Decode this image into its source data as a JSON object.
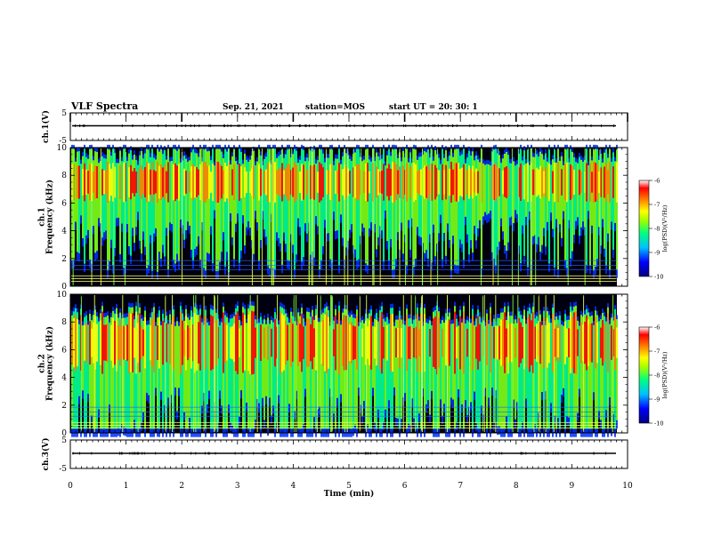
{
  "header": {
    "title": "VLF Spectra",
    "date": "Sep. 21, 2021",
    "station": "station=MOS",
    "start": "start UT =  20: 30: 1"
  },
  "colors": {
    "spectrogram_scale": [
      "#000080",
      "#0000ff",
      "#00c0ff",
      "#00ff80",
      "#80ff00",
      "#ffff00",
      "#ff8000",
      "#ff0000",
      "#ffffff"
    ]
  },
  "chart_data": [
    {
      "type": "line",
      "name": "ch1-waveform",
      "ylabel": "ch.1(V)",
      "yticks": [
        "5",
        "-5"
      ],
      "ylim": [
        -5,
        5
      ],
      "xlim": [
        0,
        10
      ],
      "level": 0
    },
    {
      "type": "heatmap",
      "name": "ch1-spectrogram",
      "ylabel": "ch.1\nFrequency (kHz)",
      "ylabel_lines": [
        "ch.1",
        "Frequency (kHz)"
      ],
      "yticks": [
        "0",
        "2",
        "4",
        "6",
        "8",
        "10"
      ],
      "ylim": [
        0,
        10
      ],
      "xlim": [
        0,
        9.8
      ],
      "band_center_khz": 7.5,
      "colorbar": {
        "label": "log(PSD)(V²/Hz)",
        "ticks": [
          "-6",
          "-7",
          "-8",
          "-9",
          "-10"
        ],
        "range": [
          -10,
          -6
        ]
      }
    },
    {
      "type": "heatmap",
      "name": "ch2-spectrogram",
      "ylabel": "ch.2\nFrequency (kHz)",
      "ylabel_lines": [
        "ch.2",
        "Frequency (kHz)"
      ],
      "yticks": [
        "0",
        "2",
        "4",
        "6",
        "8",
        "10"
      ],
      "ylim": [
        0,
        10
      ],
      "xlim": [
        0,
        9.8
      ],
      "band_center_khz": 6.5,
      "colorbar": {
        "label": "log(PSD)(V²/Hz)",
        "ticks": [
          "-6",
          "-7",
          "-8",
          "-9",
          "-10"
        ],
        "range": [
          -10,
          -6
        ]
      }
    },
    {
      "type": "line",
      "name": "ch3-waveform",
      "ylabel": "ch.3(V)",
      "yticks": [
        "5",
        "-5"
      ],
      "ylim": [
        -5,
        5
      ],
      "xlim": [
        0,
        10
      ],
      "level": 0
    }
  ],
  "xaxis": {
    "label": "Time (min)",
    "ticks": [
      "0",
      "1",
      "2",
      "3",
      "4",
      "5",
      "6",
      "7",
      "8",
      "9",
      "10"
    ],
    "range": [
      0,
      10
    ]
  }
}
